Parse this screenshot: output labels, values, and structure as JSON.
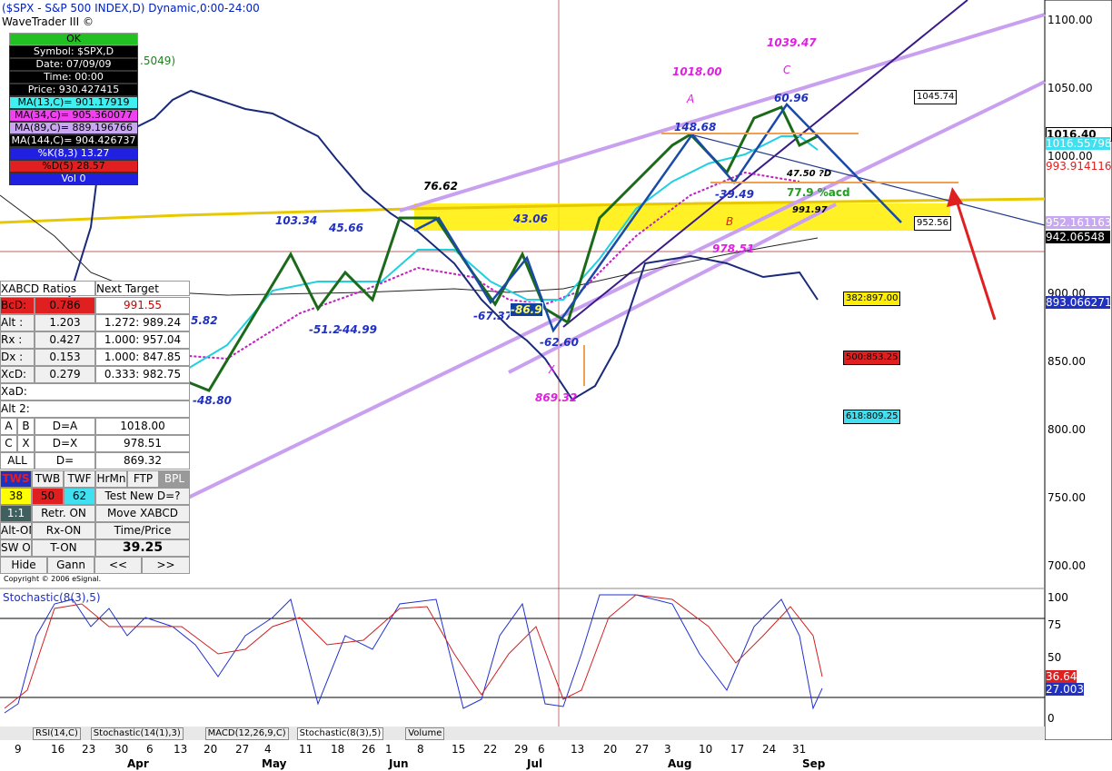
{
  "header": {
    "title": "($SPX - S&P 500 INDEX,D) Dynamic,0:00-24:00",
    "subtitle": "WaveTrader III ©"
  },
  "info_panel": {
    "status": "OK",
    "rows": [
      "Symbol: $SPX,D",
      "Date: 07/09/09",
      "Time: 00:00",
      "Price: 930.427415",
      "MA(13,C)= 901.17919",
      "MA(34,C)= 905.360077",
      "MA(89,C)= 889.196766",
      "MA(144,C)= 904.426737",
      "%K(8,3) 13.27",
      "%D(5) 28.57",
      "Vol 0"
    ]
  },
  "ratios_panel": {
    "header": [
      "XABCD Ratios",
      "Next Target"
    ],
    "rows": [
      [
        "BcD:",
        "0.786",
        "991.55"
      ],
      [
        "Alt :",
        "1.203",
        "1.272: 989.24"
      ],
      [
        "Rx :",
        "0.427",
        "1.000: 957.04"
      ],
      [
        "Dx :",
        "0.153",
        "1.000: 847.85"
      ],
      [
        "XcD:",
        "0.279",
        "0.333: 982.75"
      ]
    ],
    "xad": "XaD:",
    "alt2": "Alt 2:",
    "legs": [
      [
        "A",
        "B",
        "D=A",
        "1018.00"
      ],
      [
        "C",
        "X",
        "D=X",
        "978.51"
      ],
      [
        "ALL",
        "D=",
        "869.32"
      ]
    ]
  },
  "buttons": [
    [
      "TWS",
      "TWB",
      "TWF",
      "HrMn",
      "FTP",
      "BPL"
    ],
    [
      "38",
      "50",
      "62",
      "Test New D=?"
    ],
    [
      "1:1",
      "Retr. ON",
      "Move XABCD"
    ],
    [
      "Alt-ON",
      "Rx-ON",
      "Time/Price"
    ],
    [
      "SW OFF",
      "T-ON",
      "39.25"
    ],
    [
      "Hide",
      "Gann",
      "<<",
      ">>"
    ]
  ],
  "copyright": "Copyright © 2006 eSignal.",
  "price_axis": [
    "1100.00",
    "1050.00",
    "1000.00",
    "950.00",
    "900.00",
    "850.00",
    "800.00",
    "750.00",
    "700.00"
  ],
  "price_flags": [
    "1016.40",
    "1016.55798",
    "993.914116",
    "952.161163",
    "942.06548",
    "893.066271"
  ],
  "annotations": [
    "1018.00",
    "A",
    "1039.47",
    "C",
    "60.96",
    "148.68",
    "1045.74",
    "47.50 ?D",
    "-39.49",
    "77.9 %acd",
    "991.97",
    "B",
    "978.51",
    "76.62",
    "103.34",
    "45.66",
    "43.06",
    "-51.2",
    "-44.99",
    "-67.37",
    "-86.9",
    "-62.60",
    "X",
    "869.32",
    "-48.80",
    "5.82",
    ".5049)",
    "952.56",
    "382:897.00",
    "500:853.25",
    "618:809.25"
  ],
  "stochastic": {
    "title": "Stochastic(8(3),5)",
    "axis": [
      "100",
      "75",
      "50",
      "25",
      "0"
    ],
    "flags": [
      "36.64",
      "27.003"
    ]
  },
  "tabs": [
    "RSI(14,C)",
    "Stochastic(14(1),3)",
    "MACD(12,26,9,C)",
    "Stochastic(8(3),5)",
    "Volume"
  ],
  "days": [
    "9",
    "16",
    "23",
    "30",
    "6",
    "13",
    "20",
    "27",
    "4",
    "11",
    "18",
    "26",
    "1",
    "8",
    "15",
    "22",
    "29",
    "6",
    "13",
    "20",
    "27",
    "3",
    "10",
    "17",
    "24",
    "31"
  ],
  "months": [
    "Apr",
    "May",
    "Jun",
    "Jul",
    "Aug",
    "Sep"
  ]
}
